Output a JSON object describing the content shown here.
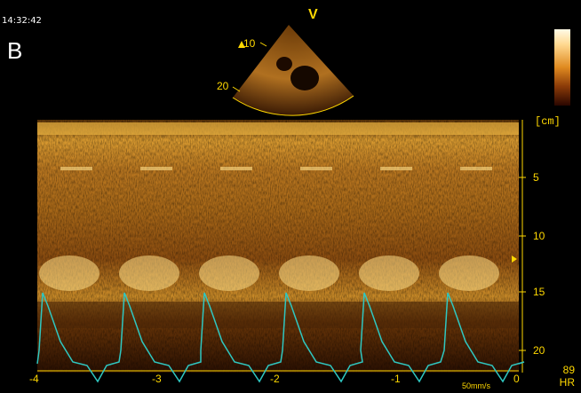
{
  "header": {
    "timestamp": "14:32:42",
    "panel_label": "B",
    "view_marker": "V"
  },
  "sector": {
    "depth_labels": [
      "10",
      "20"
    ]
  },
  "mmode": {
    "depth_unit": "[cm]",
    "depth_ticks": [
      "5",
      "10",
      "15",
      "20"
    ],
    "time_ticks": [
      "-4",
      "-3",
      "-2",
      "-1",
      "0"
    ],
    "sweep_speed": "50mm/s"
  },
  "ecg": {
    "heart_rate_value": "89",
    "heart_rate_label": "HR",
    "trace_color": "#2fc7c1"
  },
  "colors": {
    "scale_text": "#ffd800",
    "echo_bright": "#ffe08a",
    "echo_mid": "#c87a18",
    "echo_dark": "#4a2406"
  },
  "icons": {
    "colorbar": "grayscale-map-bar"
  }
}
